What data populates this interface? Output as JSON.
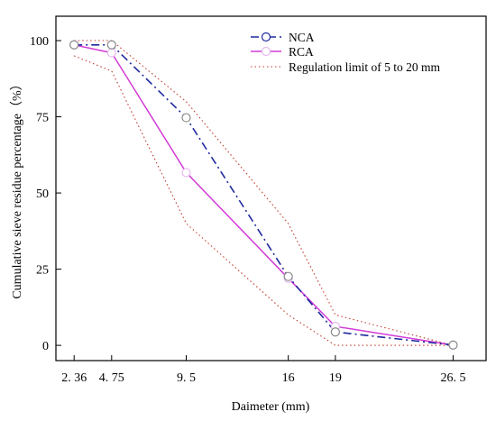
{
  "chart_data": {
    "type": "line",
    "title": "",
    "xlabel": "Daimeter (mm)",
    "ylabel": "Cumulative sieve residue percentage（%）",
    "x_ticks": [
      {
        "value": 2.36,
        "label": "2. 36"
      },
      {
        "value": 4.75,
        "label": "4. 75"
      },
      {
        "value": 9.5,
        "label": "9. 5"
      },
      {
        "value": 16,
        "label": "16"
      },
      {
        "value": 19,
        "label": "19"
      },
      {
        "value": 26.5,
        "label": "26. 5"
      }
    ],
    "y_ticks": [
      0,
      25,
      50,
      75,
      100
    ],
    "xlim": [
      1.2,
      28.6
    ],
    "ylim": [
      -5,
      108
    ],
    "grid": false,
    "legend_position": "top-right",
    "series": [
      {
        "name": "NCA",
        "color": "#1f2a9e",
        "line_style": "dashdot",
        "marker": "circle",
        "points": [
          [
            2.36,
            98.6
          ],
          [
            4.75,
            98.6
          ],
          [
            9.5,
            74.7
          ],
          [
            16,
            22.6
          ],
          [
            19,
            4.4
          ],
          [
            26.5,
            0.1
          ]
        ]
      },
      {
        "name": "RCA",
        "color": "#d23ad6",
        "line_style": "solid",
        "marker": "circle",
        "points": [
          [
            2.36,
            98.6
          ],
          [
            4.75,
            96.0
          ],
          [
            9.5,
            56.7
          ],
          [
            16,
            22.0
          ],
          [
            19,
            6.2
          ],
          [
            26.5,
            0.1
          ]
        ]
      },
      {
        "name": "Regulation limit of 5 to 20 mm",
        "color": "#c0392b",
        "line_style": "dotted",
        "marker": "none",
        "upper": [
          [
            2.36,
            100
          ],
          [
            4.75,
            100
          ],
          [
            9.5,
            80
          ],
          [
            16,
            40
          ],
          [
            19,
            10
          ],
          [
            26.5,
            0
          ]
        ],
        "lower": [
          [
            2.36,
            95
          ],
          [
            4.75,
            90
          ],
          [
            9.5,
            40
          ],
          [
            16,
            10
          ],
          [
            19,
            0
          ],
          [
            26.5,
            0
          ]
        ]
      }
    ]
  }
}
